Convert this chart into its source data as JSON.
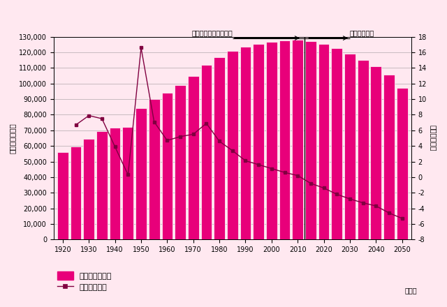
{
  "years": [
    1920,
    1925,
    1930,
    1935,
    1940,
    1945,
    1950,
    1955,
    1960,
    1965,
    1970,
    1975,
    1980,
    1985,
    1990,
    1995,
    2000,
    2005,
    2010,
    2015,
    2020,
    2025,
    2030,
    2035,
    2040,
    2045,
    2050
  ],
  "population": [
    55963,
    59737,
    64450,
    69254,
    71933,
    72147,
    84115,
    90077,
    94302,
    99209,
    104665,
    111940,
    117060,
    121049,
    123611,
    125570,
    126926,
    127768,
    128057,
    127095,
    125325,
    122544,
    119125,
    115216,
    110919,
    105832,
    97076
  ],
  "growth_rate": [
    null,
    6.7,
    7.9,
    7.5,
    3.9,
    0.3,
    16.6,
    7.1,
    4.7,
    5.2,
    5.5,
    6.9,
    4.6,
    3.4,
    2.1,
    1.6,
    1.1,
    0.6,
    0.2,
    -0.8,
    -1.4,
    -2.2,
    -2.8,
    -3.3,
    -3.7,
    -4.6,
    -5.3
  ],
  "census_cutoff_year": 2010,
  "bar_color": "#E8007A",
  "bar_edge_color": "#E8007A",
  "line_color": "#800040",
  "marker_color": "#800040",
  "bg_color": "#FFE8F0",
  "outer_bg": "#FFE8F0",
  "title_census": "国勢調査による実績値",
  "title_forecast": "将来推計人口",
  "ylabel_left": "総人口（千人）",
  "ylabel_right": "増減率（％）",
  "xlabel": "（年）",
  "legend_pop": "総人口（千人）",
  "legend_rate": "増減率（％）",
  "ylim_left": [
    0,
    130000
  ],
  "ylim_right": [
    -8,
    18
  ],
  "yticks_left": [
    0,
    10000,
    20000,
    30000,
    40000,
    50000,
    60000,
    70000,
    80000,
    90000,
    100000,
    110000,
    120000,
    130000
  ],
  "yticks_right": [
    -8,
    -6,
    -4,
    -2,
    0,
    2,
    4,
    6,
    8,
    10,
    12,
    14,
    16,
    18
  ],
  "xtick_years": [
    1920,
    1930,
    1940,
    1950,
    1960,
    1970,
    1980,
    1990,
    2000,
    2010,
    2020,
    2030,
    2040,
    2050
  ]
}
